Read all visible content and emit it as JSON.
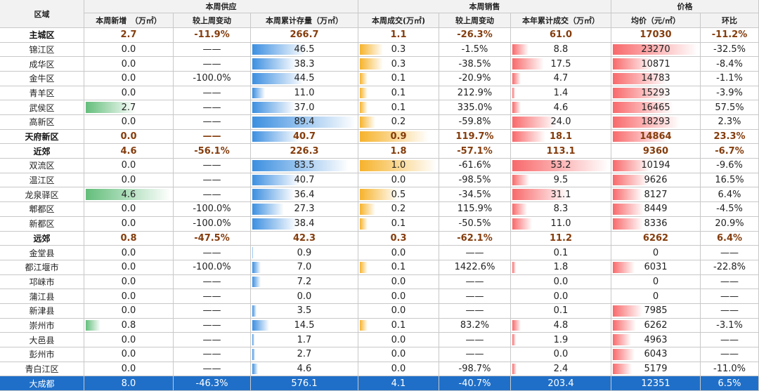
{
  "header": {
    "region": "区域",
    "groups": [
      "本周供应",
      "本周销售",
      "价格"
    ],
    "columns": [
      "本周新增　（万㎡）",
      "较上周变动",
      "本周累计存量（万㎡）",
      "本周成交(万㎡)",
      "较上周变动",
      "本年累计成交（万㎡）",
      "均价（元/㎡）",
      "环比"
    ]
  },
  "rows": [
    {
      "cells": [
        "主城区",
        "2.7",
        "-11.9%",
        "266.7",
        "1.1",
        "-26.3%",
        "61.0",
        "17030",
        "-11.2%"
      ],
      "bold": true,
      "bars": false
    },
    {
      "cells": [
        "锦江区",
        "0.0",
        "——",
        "46.5",
        "0.3",
        "-1.5%",
        "8.8",
        "23270",
        "-32.5%"
      ],
      "bold": false,
      "bars": true
    },
    {
      "cells": [
        "成华区",
        "0.0",
        "——",
        "38.3",
        "0.3",
        "-38.5%",
        "17.5",
        "10871",
        "-8.4%"
      ],
      "bold": false,
      "bars": true
    },
    {
      "cells": [
        "金牛区",
        "0.0",
        "-100.0%",
        "44.5",
        "0.1",
        "-20.9%",
        "4.7",
        "14783",
        "-1.1%"
      ],
      "bold": false,
      "bars": true
    },
    {
      "cells": [
        "青羊区",
        "0.0",
        "——",
        "11.0",
        "0.1",
        "212.9%",
        "1.4",
        "15293",
        "-3.9%"
      ],
      "bold": false,
      "bars": true
    },
    {
      "cells": [
        "武侯区",
        "2.7",
        "——",
        "37.0",
        "0.1",
        "335.0%",
        "4.6",
        "16465",
        "57.5%"
      ],
      "bold": false,
      "bars": true
    },
    {
      "cells": [
        "高新区",
        "0.0",
        "——",
        "89.4",
        "0.2",
        "-59.8%",
        "24.0",
        "18293",
        "2.3%"
      ],
      "bold": false,
      "bars": true
    },
    {
      "cells": [
        "天府新区",
        "0.0",
        "——",
        "40.7",
        "0.9",
        "119.7%",
        "18.1",
        "14864",
        "23.3%"
      ],
      "bold": true,
      "bars": true
    },
    {
      "cells": [
        "近郊",
        "4.6",
        "-56.1%",
        "226.3",
        "1.8",
        "-57.1%",
        "113.1",
        "9360",
        "-6.7%"
      ],
      "bold": true,
      "bars": false
    },
    {
      "cells": [
        "双流区",
        "0.0",
        "——",
        "83.5",
        "1.0",
        "-61.6%",
        "53.2",
        "10194",
        "-9.6%"
      ],
      "bold": false,
      "bars": true
    },
    {
      "cells": [
        "温江区",
        "0.0",
        "——",
        "40.7",
        "0.0",
        "-98.5%",
        "9.5",
        "9626",
        "16.5%"
      ],
      "bold": false,
      "bars": true
    },
    {
      "cells": [
        "龙泉驿区",
        "4.6",
        "——",
        "36.4",
        "0.5",
        "-34.5%",
        "31.1",
        "8127",
        "6.4%"
      ],
      "bold": false,
      "bars": true
    },
    {
      "cells": [
        "郫都区",
        "0.0",
        "-100.0%",
        "27.3",
        "0.2",
        "115.9%",
        "8.3",
        "8449",
        "-4.5%"
      ],
      "bold": false,
      "bars": true
    },
    {
      "cells": [
        "新都区",
        "0.0",
        "-100.0%",
        "38.4",
        "0.1",
        "-50.5%",
        "11.0",
        "8336",
        "20.9%"
      ],
      "bold": false,
      "bars": true
    },
    {
      "cells": [
        "远郊",
        "0.8",
        "-47.5%",
        "42.3",
        "0.3",
        "-62.1%",
        "11.2",
        "6262",
        "6.4%"
      ],
      "bold": true,
      "bars": false
    },
    {
      "cells": [
        "金堂县",
        "0.0",
        "——",
        "0.9",
        "0.0",
        "——",
        "0.1",
        "0",
        "——"
      ],
      "bold": false,
      "bars": true
    },
    {
      "cells": [
        "都江堰市",
        "0.0",
        "-100.0%",
        "7.0",
        "0.1",
        "1422.6%",
        "1.8",
        "6031",
        "-22.8%"
      ],
      "bold": false,
      "bars": true
    },
    {
      "cells": [
        "邛崃市",
        "0.0",
        "——",
        "7.2",
        "0.0",
        "——",
        "0.0",
        "0",
        "——"
      ],
      "bold": false,
      "bars": true
    },
    {
      "cells": [
        "蒲江县",
        "0.0",
        "——",
        "0.0",
        "0.0",
        "——",
        "0.0",
        "0",
        "——"
      ],
      "bold": false,
      "bars": true
    },
    {
      "cells": [
        "新津县",
        "0.0",
        "——",
        "3.5",
        "0.0",
        "——",
        "0.1",
        "7985",
        "——"
      ],
      "bold": false,
      "bars": true
    },
    {
      "cells": [
        "崇州市",
        "0.8",
        "——",
        "14.5",
        "0.1",
        "83.2%",
        "4.8",
        "6262",
        "-3.1%"
      ],
      "bold": false,
      "bars": true
    },
    {
      "cells": [
        "大邑县",
        "0.0",
        "——",
        "1.7",
        "0.0",
        "——",
        "1.9",
        "4963",
        "——"
      ],
      "bold": false,
      "bars": true
    },
    {
      "cells": [
        "彭州市",
        "0.0",
        "——",
        "2.7",
        "0.0",
        "——",
        "0.0",
        "6043",
        "——"
      ],
      "bold": false,
      "bars": true
    },
    {
      "cells": [
        "青白江区",
        "0.0",
        "——",
        "4.6",
        "0.0",
        "-98.7%",
        "2.4",
        "5179",
        "-11.0%"
      ],
      "bold": false,
      "bars": true
    },
    {
      "cells": [
        "大成都",
        "8.0",
        "-46.3%",
        "576.1",
        "4.1",
        "-40.7%",
        "203.4",
        "12351",
        "6.5%"
      ],
      "bold": false,
      "bars": false,
      "total": true
    }
  ]
}
